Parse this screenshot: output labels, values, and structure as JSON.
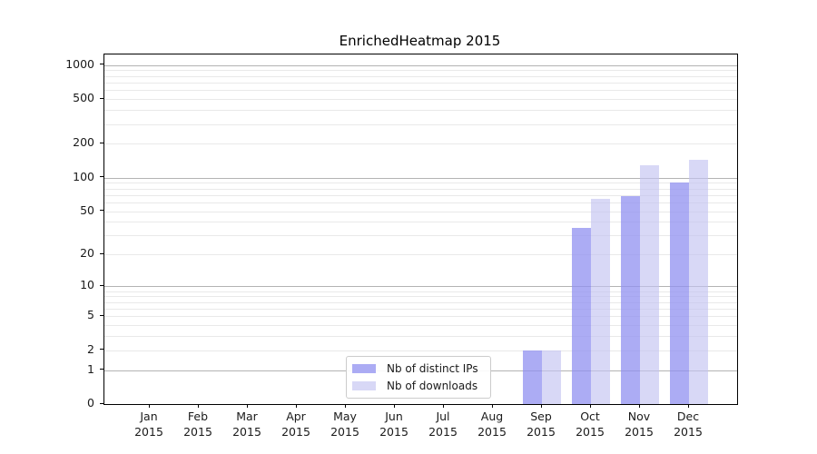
{
  "chart_data": {
    "type": "bar",
    "title": "EnrichedHeatmap 2015",
    "year": "2015",
    "months": [
      "Jan",
      "Feb",
      "Mar",
      "Apr",
      "May",
      "Jun",
      "Jul",
      "Aug",
      "Sep",
      "Oct",
      "Nov",
      "Dec"
    ],
    "yticks": [
      0,
      1,
      2,
      5,
      10,
      20,
      50,
      100,
      200,
      500,
      1000
    ],
    "ylim": [
      0,
      1240
    ],
    "yscale": "log1p",
    "grid": true,
    "legend_position": "lower center",
    "colors": {
      "distinct_ips": "rgba(144,144,240,0.75)",
      "downloads": "rgba(195,195,241,0.65)",
      "major_grid": "#b3b3b3",
      "minor_grid": "#e9e9e9"
    },
    "series": [
      {
        "name": "Nb of distinct IPs",
        "color": "rgba(144,144,240,0.75)",
        "values": [
          0,
          0,
          0,
          0,
          0,
          0,
          0,
          0,
          2,
          35,
          68,
          90
        ]
      },
      {
        "name": "Nb of downloads",
        "color": "rgba(195,195,241,0.65)",
        "values": [
          0,
          0,
          0,
          0,
          0,
          0,
          0,
          0,
          2,
          64,
          130,
          145
        ]
      }
    ]
  }
}
